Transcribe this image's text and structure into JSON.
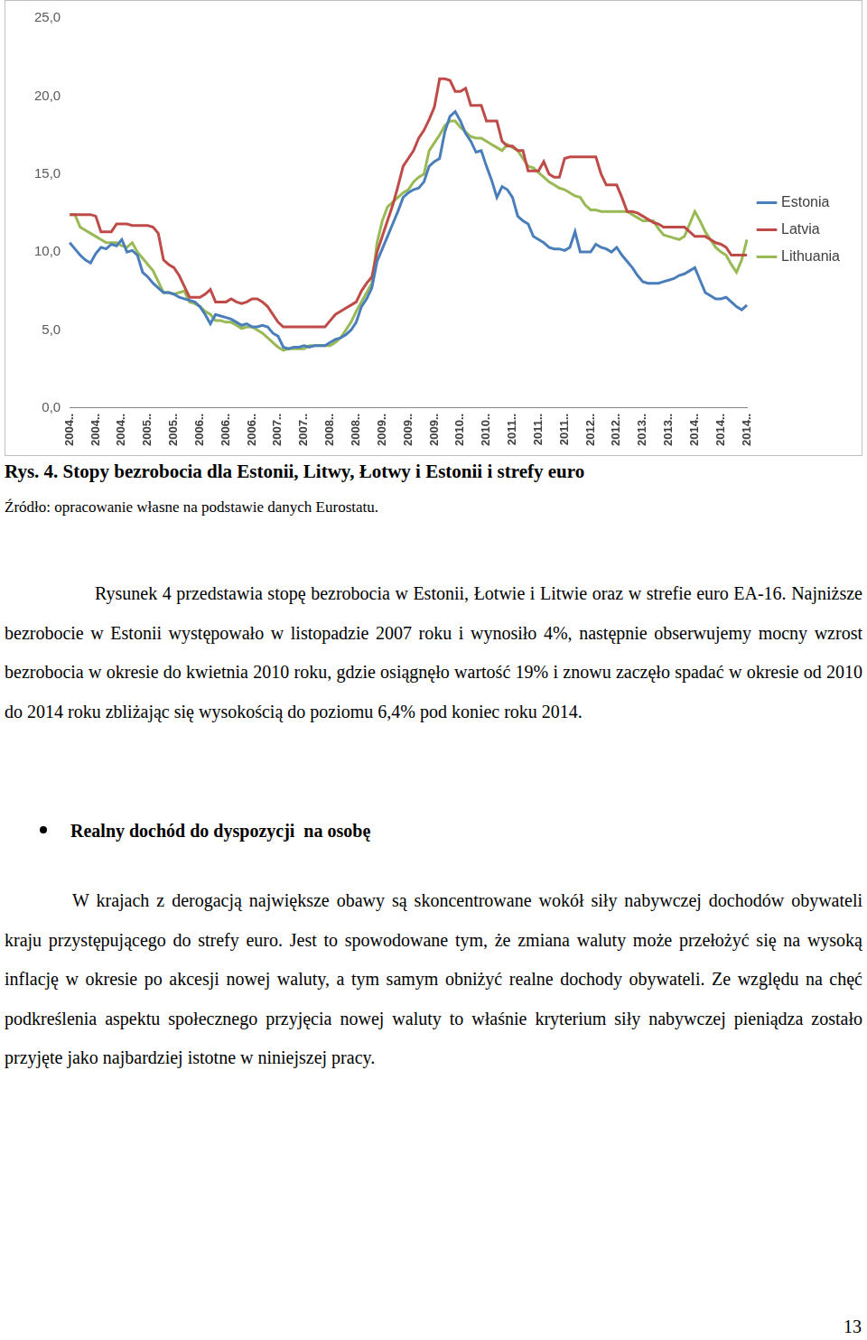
{
  "chart_data": {
    "type": "line",
    "categories": [
      "2004..",
      null,
      null,
      null,
      null,
      "2004..",
      null,
      null,
      null,
      null,
      "2004..",
      null,
      null,
      null,
      null,
      "2005..",
      null,
      null,
      null,
      null,
      "2005..",
      null,
      null,
      null,
      null,
      "2006..",
      null,
      null,
      null,
      null,
      "2006..",
      null,
      null,
      null,
      null,
      "2006..",
      null,
      null,
      null,
      null,
      "2007..",
      null,
      null,
      null,
      null,
      "2007..",
      null,
      null,
      null,
      null,
      "2008..",
      null,
      null,
      null,
      null,
      "2008..",
      null,
      null,
      null,
      null,
      "2009..",
      null,
      null,
      null,
      null,
      "2009..",
      null,
      null,
      null,
      null,
      "2009..",
      null,
      null,
      null,
      null,
      "2010..",
      null,
      null,
      null,
      null,
      "2010..",
      null,
      null,
      null,
      null,
      "2011..",
      null,
      null,
      null,
      null,
      "2011..",
      null,
      null,
      null,
      null,
      "2011..",
      null,
      null,
      null,
      null,
      "2012..",
      null,
      null,
      null,
      null,
      "2012..",
      null,
      null,
      null,
      null,
      "2013..",
      null,
      null,
      null,
      null,
      "2013..",
      null,
      null,
      null,
      null,
      "2014..",
      null,
      null,
      null,
      null,
      "2014..",
      null,
      null,
      null,
      null,
      "2014.."
    ],
    "series": [
      {
        "name": "Estonia",
        "color": "#4a7ebb",
        "values": [
          10.6,
          10.2,
          9.8,
          9.5,
          9.3,
          9.9,
          10.3,
          10.2,
          10.5,
          10.4,
          10.8,
          10.0,
          10.1,
          9.8,
          8.7,
          8.4,
          8.0,
          7.7,
          7.4,
          7.4,
          7.3,
          7.1,
          7.0,
          6.9,
          6.8,
          6.5,
          6.0,
          5.4,
          6.0,
          5.9,
          5.8,
          5.7,
          5.5,
          5.3,
          5.4,
          5.2,
          5.2,
          5.3,
          5.2,
          4.8,
          4.6,
          3.9,
          3.8,
          3.9,
          3.9,
          4.0,
          3.9,
          4.0,
          4.0,
          4.0,
          4.2,
          4.4,
          4.5,
          4.7,
          5.0,
          5.5,
          6.5,
          7.0,
          7.7,
          9.4,
          10.2,
          11.0,
          11.8,
          12.6,
          13.5,
          13.8,
          14.0,
          14.1,
          14.5,
          15.5,
          15.8,
          16.0,
          17.7,
          18.7,
          19.0,
          18.4,
          17.6,
          17.1,
          16.4,
          16.5,
          15.5,
          14.6,
          13.5,
          14.2,
          14.0,
          13.5,
          12.3,
          12.0,
          11.8,
          11.0,
          10.8,
          10.6,
          10.3,
          10.2,
          10.2,
          10.1,
          10.3,
          11.3,
          10.0,
          10.0,
          10.0,
          10.5,
          10.3,
          10.2,
          10.0,
          10.3,
          9.8,
          9.4,
          9.0,
          8.5,
          8.1,
          8.0,
          8.0,
          8.0,
          8.1,
          8.2,
          8.3,
          8.5,
          8.6,
          8.8,
          9.0,
          8.2,
          7.4,
          7.2,
          7.0,
          7.0,
          7.1,
          6.8,
          6.5,
          6.3,
          6.6
        ]
      },
      {
        "name": "Latvia",
        "color": "#be4b48",
        "values": [
          12.4,
          12.4,
          12.4,
          12.4,
          12.4,
          12.3,
          11.3,
          11.3,
          11.3,
          11.8,
          11.8,
          11.8,
          11.7,
          11.7,
          11.7,
          11.7,
          11.6,
          11.2,
          9.5,
          9.2,
          9.0,
          8.5,
          7.8,
          7.1,
          7.1,
          7.1,
          7.3,
          7.6,
          6.8,
          6.8,
          6.8,
          7.0,
          6.8,
          6.7,
          6.8,
          7.0,
          7.0,
          6.8,
          6.5,
          6.0,
          5.5,
          5.2,
          5.2,
          5.2,
          5.2,
          5.2,
          5.2,
          5.2,
          5.2,
          5.2,
          5.6,
          6.0,
          6.2,
          6.4,
          6.6,
          6.8,
          7.5,
          8.0,
          8.4,
          10.0,
          11.0,
          12.0,
          13.0,
          14.2,
          15.5,
          16.0,
          16.5,
          17.3,
          17.8,
          18.5,
          19.3,
          21.1,
          21.1,
          21.0,
          20.3,
          20.3,
          20.5,
          19.4,
          19.4,
          19.4,
          18.4,
          18.4,
          18.4,
          17.1,
          16.8,
          16.8,
          16.5,
          16.5,
          15.2,
          15.2,
          15.2,
          15.8,
          15.0,
          14.8,
          14.8,
          16.0,
          16.1,
          16.1,
          16.1,
          16.1,
          16.1,
          16.1,
          15.0,
          14.3,
          14.3,
          14.3,
          13.5,
          12.6,
          12.6,
          12.5,
          12.3,
          12.1,
          11.9,
          11.8,
          11.6,
          11.6,
          11.6,
          11.6,
          11.6,
          11.3,
          11.0,
          11.0,
          11.0,
          10.8,
          10.6,
          10.5,
          10.3,
          9.8,
          9.8,
          9.8,
          9.8
        ]
      },
      {
        "name": "Lithuania",
        "color": "#98b954",
        "values": [
          12.4,
          12.4,
          11.6,
          11.4,
          11.2,
          11.0,
          10.8,
          10.6,
          10.6,
          10.6,
          10.4,
          10.3,
          10.6,
          10.0,
          9.6,
          9.2,
          8.8,
          8.1,
          7.4,
          7.4,
          7.3,
          7.4,
          7.5,
          6.8,
          6.7,
          6.5,
          6.2,
          6.0,
          5.6,
          5.6,
          5.5,
          5.5,
          5.3,
          5.1,
          5.2,
          5.2,
          5.0,
          4.8,
          4.5,
          4.2,
          3.9,
          3.7,
          3.8,
          3.8,
          3.8,
          3.8,
          4.0,
          4.0,
          4.0,
          4.0,
          4.0,
          4.2,
          4.5,
          5.0,
          5.5,
          6.2,
          6.8,
          7.4,
          8.0,
          10.6,
          12.0,
          12.9,
          13.2,
          13.5,
          13.8,
          14.0,
          14.5,
          14.8,
          15.0,
          16.5,
          17.0,
          17.5,
          18.1,
          18.4,
          18.4,
          18.0,
          17.7,
          17.4,
          17.3,
          17.3,
          17.1,
          16.9,
          16.7,
          16.5,
          16.9,
          16.7,
          16.5,
          16.0,
          15.5,
          15.4,
          15.1,
          14.8,
          14.5,
          14.3,
          14.1,
          14.0,
          13.8,
          13.6,
          13.5,
          13.0,
          12.7,
          12.7,
          12.6,
          12.6,
          12.6,
          12.6,
          12.6,
          12.6,
          12.4,
          12.2,
          12.0,
          12.0,
          12.0,
          11.5,
          11.1,
          11.0,
          10.9,
          10.8,
          11.0,
          11.8,
          12.6,
          12.0,
          11.3,
          10.8,
          10.3,
          10.0,
          9.8,
          9.2,
          8.7,
          9.5,
          10.8
        ]
      }
    ],
    "ylim": [
      0,
      25
    ],
    "yticks": [
      {
        "value": 0,
        "label": "0,0"
      },
      {
        "value": 5,
        "label": "5,0"
      },
      {
        "value": 10,
        "label": "10,0"
      },
      {
        "value": 15,
        "label": "15,0"
      },
      {
        "value": 20,
        "label": "20,0"
      },
      {
        "value": 25,
        "label": "25,0"
      }
    ],
    "grid": false,
    "legend": "right",
    "marker": "none",
    "line_style": "solid"
  },
  "caption": "Rys. 4. Stopy bezrobocia dla Estonii, Litwy, Łotwy i Estonii i strefy euro",
  "source": "Źródło: opracowanie własne na podstawie danych Eurostatu.",
  "paragraph_1": "Rysunek 4 przedstawia stopę bezrobocia w Estonii, Łotwie i Litwie oraz w strefie euro EA-16. Najniższe bezrobocie w Estonii występowało w listopadzie 2007 roku i wynosiło 4%, następnie obserwujemy mocny wzrost bezrobocia w okresie do kwietnia 2010 roku, gdzie osiągnęło wartość 19% i znowu zaczęło spadać w okresie od 2010 do 2014 roku zbliżając się wysokością do poziomu 6,4% pod koniec roku 2014.",
  "section_heading": "Realny dochód do dyspozycji  na osobę",
  "paragraph_2": "W krajach z derogacją największe obawy są skoncentrowane wokół siły nabywczej dochodów obywateli kraju przystępującego do strefy euro. Jest to spowodowane tym, że zmiana waluty może przełożyć się na wysoką inflację w okresie po akcesji nowej waluty, a tym samym obniżyć realne dochody obywateli. Ze względu na chęć podkreślenia aspektu społecznego przyjęcia nowej waluty to właśnie kryterium siły nabywczej pieniądza zostało przyjęte jako najbardziej istotne w niniejszej pracy.",
  "page_number": "13"
}
